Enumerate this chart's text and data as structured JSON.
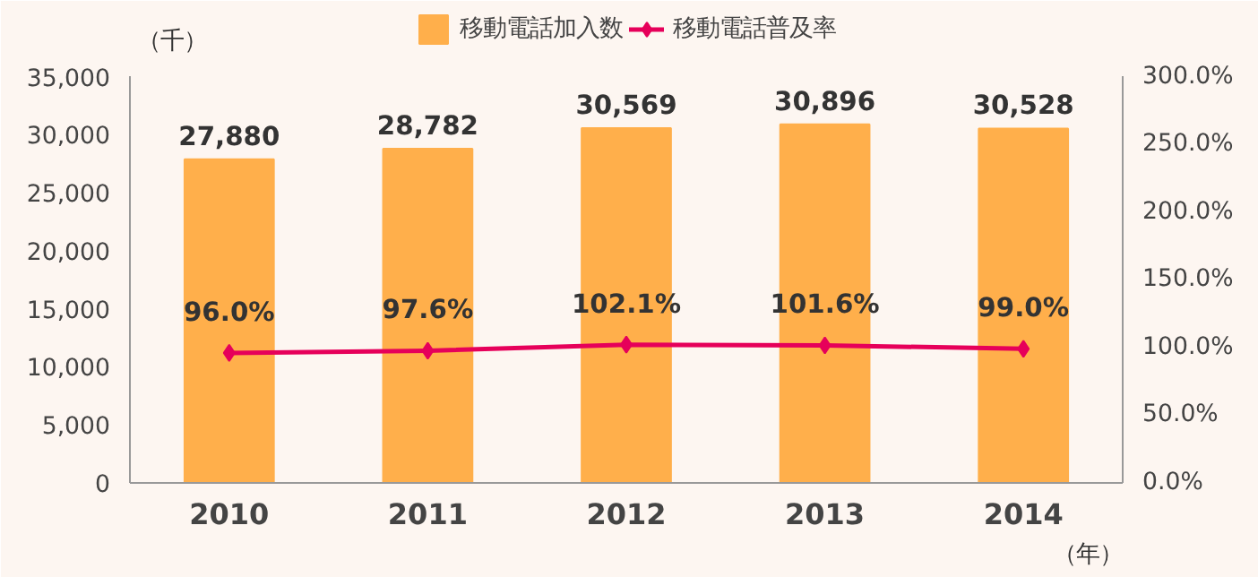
{
  "chart_data": {
    "type": "bar",
    "categories": [
      "2010",
      "2011",
      "2012",
      "2013",
      "2014"
    ],
    "series": [
      {
        "name": "移動電話加入数",
        "color": "#ffaf4b",
        "values": [
          27880,
          28782,
          30569,
          30896,
          30528
        ],
        "value_labels": [
          "27,880",
          "28,782",
          "30,569",
          "30,896",
          "30,528"
        ]
      },
      {
        "name": "移動電話普及率",
        "type": "line",
        "axis": "y2",
        "color": "#e6005a",
        "marker": "diamond",
        "values": [
          96.0,
          97.6,
          102.1,
          101.6,
          99.0
        ],
        "value_labels": [
          "96.0%",
          "97.6%",
          "102.1%",
          "101.6%",
          "99.0%"
        ]
      }
    ],
    "ylabel": "（千）",
    "xlabel": "（年）",
    "ylim": [
      0,
      35000
    ],
    "yticks": [
      0,
      {
        "value": 5000,
        "label": "5,000"
      },
      {
        "value": 10000,
        "label": "10,000"
      },
      {
        "value": 15000,
        "label": "15,000"
      },
      {
        "value": 20000,
        "label": "20,000"
      },
      {
        "value": 25000,
        "label": "25,000"
      },
      {
        "value": 30000,
        "label": "30,000"
      },
      {
        "value": 35000,
        "label": "35,000"
      }
    ],
    "y2lim": [
      0,
      300
    ],
    "y2ticks": [
      {
        "value": 0,
        "label": "0.0%"
      },
      {
        "value": 50,
        "label": "50.0%"
      },
      {
        "value": 100,
        "label": "100.0%"
      },
      {
        "value": 150,
        "label": "150.0%"
      },
      {
        "value": 200,
        "label": "200.0%"
      },
      {
        "value": 250,
        "label": "250.0%"
      },
      {
        "value": 300,
        "label": "300.0%"
      }
    ],
    "legend": "top",
    "grid": false
  }
}
